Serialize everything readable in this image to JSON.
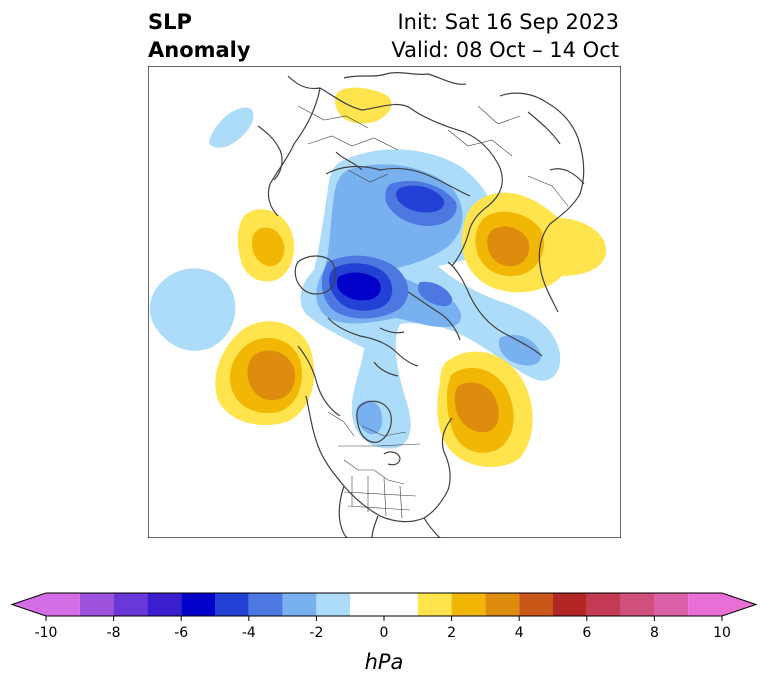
{
  "title": {
    "left_line1": "SLP",
    "left_line2": "Anomaly",
    "right_line1": "Init: Sat 16 Sep 2023",
    "right_line2": "Valid: 08 Oct – 14 Oct"
  },
  "colorbar": {
    "unit_label": "hPa",
    "tick_labels": [
      "-10",
      "-8",
      "-6",
      "-4",
      "-2",
      "0",
      "2",
      "4",
      "6",
      "8",
      "10"
    ],
    "levels": [
      -10,
      -9,
      -8,
      -7,
      -6,
      -5,
      -4,
      -3,
      -2,
      -1,
      1,
      2,
      3,
      4,
      5,
      6,
      7,
      8,
      9,
      10
    ],
    "colors": [
      "#d46ee6",
      "#9d52de",
      "#6a37d8",
      "#3a1fcf",
      "#0000c8",
      "#2441d6",
      "#4d78e2",
      "#78b0f0",
      "#acdcfa",
      "#ffffff",
      "#ffe44d",
      "#f2b705",
      "#de8c0e",
      "#c95818",
      "#b32626",
      "#c43a55",
      "#d14f7c",
      "#db60a8",
      "#e76fd6"
    ],
    "extend": "both"
  },
  "map": {
    "projection": "polar-stereographic",
    "center": "north-pole",
    "features": [
      "coastlines",
      "country-borders",
      "state-province-borders"
    ]
  }
}
